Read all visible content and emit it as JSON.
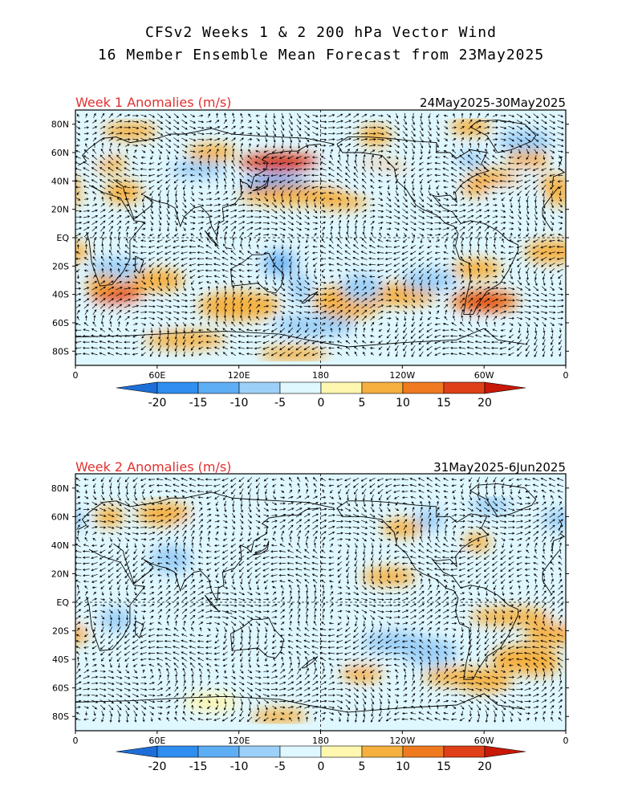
{
  "title_line1": "CFSv2 Weeks 1 & 2 200 hPa Vector Wind",
  "title_line2": "16 Member Ensemble Mean Forecast from 23May2025",
  "panels": [
    {
      "label": "Week 1 Anomalies (m/s)",
      "date_range": "24May2025-30May2025",
      "blobs": [
        [
          -28,
          55,
          15,
          8,
          6
        ],
        [
          -55,
          38,
          25,
          10,
          7
        ],
        [
          -138,
          48,
          20,
          6,
          6
        ],
        [
          -116,
          32,
          12,
          6,
          -5
        ],
        [
          -30,
          45,
          10,
          5,
          -4
        ],
        [
          25,
          52,
          12,
          6,
          6
        ],
        [
          -8,
          38,
          12,
          6,
          5
        ],
        [
          -5,
          28,
          10,
          5,
          6
        ],
        [
          -70,
          55,
          10,
          6,
          -6
        ],
        [
          -80,
          42,
          10,
          5,
          -4
        ],
        [
          150,
          53,
          30,
          6,
          15
        ],
        [
          148,
          38,
          25,
          6,
          -14
        ],
        [
          160,
          30,
          40,
          7,
          8
        ],
        [
          205,
          45,
          35,
          6,
          -5
        ],
        [
          195,
          25,
          20,
          5,
          5
        ],
        [
          35,
          32,
          14,
          8,
          8
        ],
        [
          -40,
          30,
          20,
          8,
          -5
        ],
        [
          100,
          60,
          18,
          6,
          5
        ],
        [
          90,
          48,
          20,
          6,
          -6
        ],
        [
          10,
          60,
          15,
          8,
          -5
        ],
        [
          -30,
          68,
          20,
          8,
          -7
        ],
        [
          -140,
          72,
          12,
          7,
          8
        ],
        [
          40,
          75,
          20,
          6,
          5
        ],
        [
          -70,
          78,
          15,
          6,
          5
        ],
        [
          30,
          -22,
          20,
          8,
          -8
        ],
        [
          -10,
          -10,
          20,
          8,
          5
        ],
        [
          -160,
          -20,
          20,
          8,
          -5
        ],
        [
          -65,
          -22,
          18,
          7,
          8
        ],
        [
          150,
          -18,
          14,
          10,
          -9
        ],
        [
          165,
          -35,
          8,
          10,
          -7
        ],
        [
          200,
          -45,
          25,
          12,
          6
        ],
        [
          120,
          -48,
          30,
          10,
          8
        ],
        [
          40,
          -55,
          30,
          10,
          -5
        ],
        [
          30,
          -40,
          20,
          8,
          10
        ],
        [
          -60,
          -45,
          25,
          8,
          10
        ],
        [
          20,
          -32,
          12,
          6,
          8
        ],
        [
          -120,
          -40,
          25,
          8,
          8
        ],
        [
          -150,
          -35,
          15,
          10,
          -7
        ],
        [
          175,
          -62,
          30,
          8,
          -6
        ],
        [
          -30,
          -70,
          20,
          6,
          -5
        ],
        [
          80,
          -72,
          30,
          6,
          7
        ],
        [
          160,
          -82,
          25,
          5,
          5
        ],
        [
          -80,
          -65,
          30,
          6,
          -5
        ],
        [
          -100,
          -30,
          20,
          8,
          -6
        ],
        [
          0,
          -55,
          20,
          8,
          -5
        ],
        [
          60,
          -30,
          20,
          8,
          5
        ]
      ]
    },
    {
      "label": "Week 2 Anomalies (m/s)",
      "date_range": "31May2025-6Jun2025",
      "blobs": [
        [
          -88,
          28,
          15,
          10,
          -5
        ],
        [
          70,
          30,
          15,
          10,
          -6
        ],
        [
          30,
          -12,
          12,
          8,
          -6
        ],
        [
          0,
          -12,
          15,
          8,
          -4
        ],
        [
          -10,
          -22,
          20,
          8,
          5
        ],
        [
          -30,
          -40,
          25,
          10,
          5
        ],
        [
          -60,
          -55,
          20,
          8,
          5
        ],
        [
          -100,
          -35,
          20,
          10,
          -6
        ],
        [
          -150,
          -35,
          15,
          10,
          -5
        ],
        [
          -40,
          -10,
          30,
          6,
          6
        ],
        [
          -125,
          -28,
          25,
          8,
          -6
        ],
        [
          -80,
          -52,
          25,
          6,
          6
        ],
        [
          150,
          -80,
          20,
          5,
          5
        ],
        [
          -55,
          68,
          15,
          6,
          -6
        ],
        [
          -100,
          58,
          10,
          8,
          -6
        ],
        [
          -160,
          -70,
          20,
          6,
          -5
        ],
        [
          -30,
          -75,
          20,
          6,
          -4
        ],
        [
          100,
          -70,
          20,
          6,
          4
        ],
        [
          40,
          -70,
          20,
          6,
          -3
        ],
        [
          -5,
          58,
          12,
          7,
          -6
        ],
        [
          25,
          60,
          10,
          7,
          5
        ],
        [
          65,
          62,
          20,
          8,
          5
        ],
        [
          95,
          52,
          20,
          8,
          -5
        ],
        [
          160,
          45,
          15,
          6,
          -4
        ],
        [
          -130,
          18,
          20,
          6,
          5
        ],
        [
          -65,
          42,
          10,
          6,
          5
        ],
        [
          -120,
          52,
          15,
          6,
          5
        ],
        [
          -150,
          -50,
          15,
          6,
          5
        ],
        [
          -20,
          -45,
          15,
          6,
          5
        ]
      ]
    }
  ],
  "lat_labels": [
    "80N",
    "60N",
    "40N",
    "20N",
    "EQ",
    "20S",
    "40S",
    "60S",
    "80S"
  ],
  "lon_labels": [
    "0",
    "60E",
    "120E",
    "180",
    "120W",
    "60W",
    "0"
  ],
  "colorbar": {
    "ticks": [
      "-20",
      "-15",
      "-10",
      "-5",
      "0",
      "5",
      "10",
      "15",
      "20"
    ],
    "colors": [
      "#1e6ed8",
      "#2f8ef0",
      "#5eaef5",
      "#9dd0f8",
      "#dff7ff",
      "#fff7b0",
      "#f5b040",
      "#f07a20",
      "#e04018",
      "#c81808"
    ]
  },
  "colors": {
    "title": "#000000",
    "panel_label": "#e03030",
    "frame": "#000000"
  }
}
